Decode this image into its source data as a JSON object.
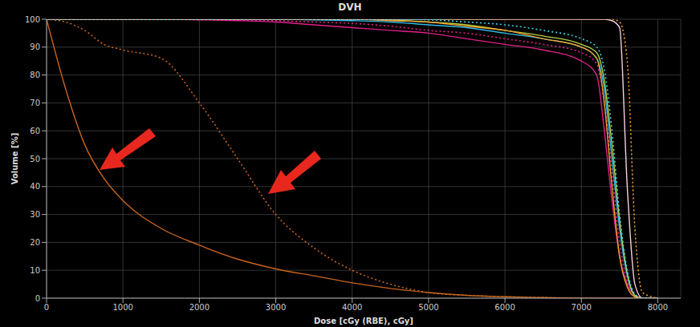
{
  "chart_data": {
    "type": "line",
    "title": "DVH",
    "x_label": "Dose [cGy (RBE), cGy]",
    "y_label": "Volume [%]",
    "x": [
      0,
      250,
      500,
      750,
      1000,
      1500,
      2000,
      2500,
      3000,
      3500,
      4000,
      4500,
      5000,
      5500,
      6000,
      6500,
      7000,
      7200,
      7300,
      7400,
      7500,
      7600,
      7700,
      7800,
      8000
    ],
    "series": [
      {
        "color": "#c8641e",
        "line_style": "solid",
        "values": [
          100,
          75,
          55,
          43,
          35,
          25,
          19,
          14,
          10.5,
          8,
          5.5,
          3.5,
          2,
          1,
          0.5,
          0.2,
          0,
          0,
          0,
          0,
          0,
          0,
          0,
          0,
          0
        ]
      },
      {
        "color": "#c8641e",
        "line_style": "dotted",
        "values": [
          100,
          99,
          96,
          91,
          89,
          86,
          70,
          50,
          30,
          18,
          10,
          5,
          2,
          1,
          0.5,
          0.2,
          0,
          0,
          0,
          0,
          0,
          0,
          0,
          0,
          0
        ]
      },
      {
        "color": "#e0208a",
        "line_style": "solid",
        "values": [
          100,
          100,
          100,
          100,
          100,
          100,
          99.8,
          99.5,
          99,
          98,
          97,
          96,
          95,
          93,
          91,
          89,
          85,
          80,
          60,
          35,
          15,
          5,
          1,
          0,
          0
        ]
      },
      {
        "color": "#e0208a",
        "line_style": "dotted",
        "values": [
          100,
          100,
          100,
          100,
          100,
          100,
          100,
          99.8,
          99.5,
          99,
          98.5,
          97.5,
          96,
          95,
          93,
          91,
          88,
          84,
          70,
          45,
          20,
          6,
          1,
          0,
          0
        ]
      },
      {
        "color": "#30b8e8",
        "line_style": "solid",
        "values": [
          100,
          100,
          100,
          100,
          100,
          100,
          100,
          100,
          100,
          99.8,
          99.5,
          99,
          98,
          97,
          95,
          93,
          90,
          86,
          75,
          50,
          25,
          8,
          1,
          0,
          0
        ]
      },
      {
        "color": "#b8d040",
        "line_style": "solid",
        "values": [
          100,
          100,
          100,
          100,
          100,
          100,
          100,
          100,
          100,
          100,
          100,
          99.7,
          99,
          98,
          96,
          94,
          91,
          88,
          78,
          55,
          28,
          9,
          1,
          0,
          0
        ]
      },
      {
        "color": "#f0a030",
        "line_style": "solid",
        "values": [
          100,
          100,
          100,
          100,
          100,
          100,
          100,
          100,
          100,
          100,
          100,
          99.5,
          99,
          97.5,
          96,
          93,
          90,
          86,
          70,
          40,
          15,
          4,
          0.5,
          0,
          0
        ]
      },
      {
        "color": "#f5d0e0",
        "line_style": "solid",
        "values": [
          100,
          100,
          100,
          100,
          100,
          100,
          100,
          100,
          100,
          100,
          100,
          100,
          100,
          100,
          100,
          100,
          100,
          100,
          100,
          99.5,
          97,
          40,
          5,
          0,
          0
        ]
      },
      {
        "color": "#f0a030",
        "line_style": "dotted",
        "values": [
          100,
          100,
          100,
          100,
          100,
          100,
          100,
          100,
          100,
          100,
          100,
          100,
          100,
          100,
          100,
          100,
          100,
          100,
          100,
          100,
          99,
          85,
          25,
          2,
          0
        ]
      },
      {
        "color": "#40d0e0",
        "line_style": "dotted",
        "values": [
          100,
          100,
          100,
          100,
          100,
          100,
          100,
          100,
          100,
          100,
          100,
          100,
          99.8,
          99,
          98,
          96,
          93,
          90,
          82,
          60,
          30,
          10,
          1.5,
          0,
          0
        ]
      }
    ],
    "xlim": [
      0,
      8300
    ],
    "ylim": [
      0,
      100
    ],
    "xticks": [
      0,
      1000,
      2000,
      3000,
      4000,
      5000,
      6000,
      7000,
      8000
    ],
    "yticks": [
      0,
      10,
      20,
      30,
      40,
      50,
      60,
      70,
      80,
      90,
      100
    ],
    "grid": true
  }
}
